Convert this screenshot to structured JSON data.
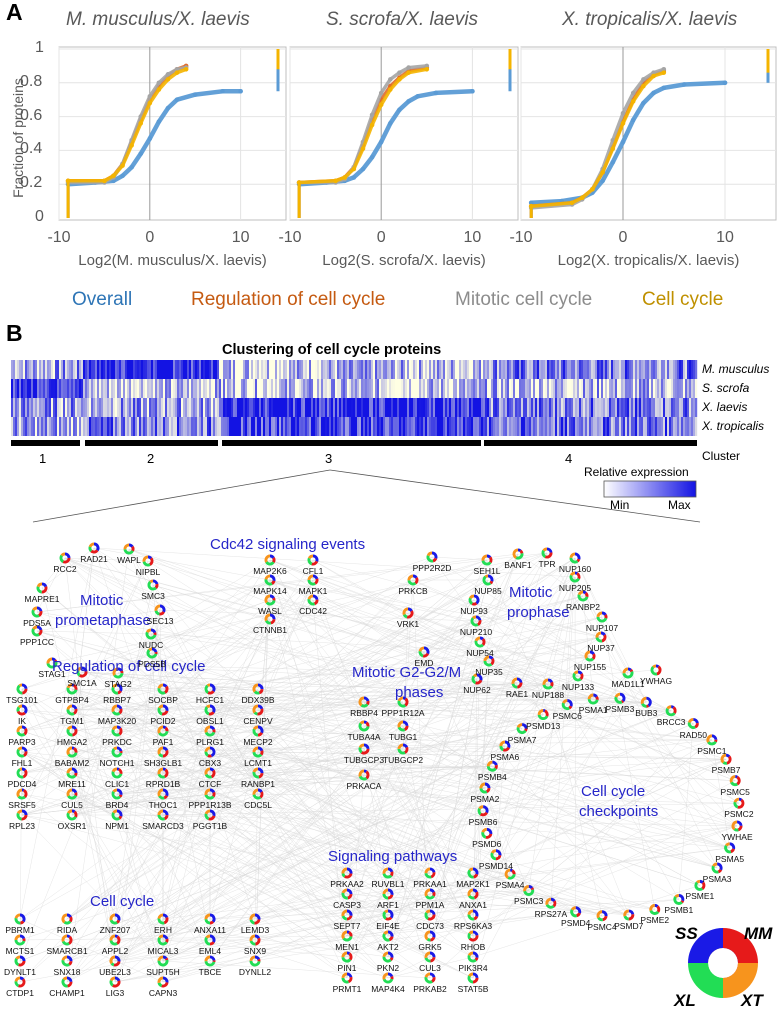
{
  "panel_a": {
    "label": "A",
    "y_axis_label": "Fraction of proteins",
    "y_ticks": [
      "1",
      "0.8",
      "0.6",
      "0.4",
      "0.2",
      "0"
    ],
    "x_ticks": [
      "-10",
      "0",
      "10"
    ],
    "colors": {
      "overall": "#5b9bd5",
      "regulation": "#e06c2c",
      "mitotic": "#a5a5a5",
      "cell_cycle": "#f4b400"
    }
  },
  "panel_b": {
    "label": "B",
    "heatmap_title": "Clustering of cell cycle proteins",
    "row_labels": [
      "M. musculus",
      "S. scrofa",
      "X. laevis",
      "X. tropicalis"
    ],
    "cluster_word": "Cluster",
    "clusters": [
      "1",
      "2",
      "3",
      "4"
    ],
    "relexp_title": "Relative expression",
    "relexp_min": "Min",
    "relexp_max": "Max",
    "min_color": "#ffffff",
    "max_color": "#1313e3"
  },
  "network": {
    "groups": {
      "cdc42": "Cdc42 signaling events",
      "prometa_1": "Mitotic",
      "prometa_2": "prometaphase",
      "prophase_1": "Mitotic",
      "prophase_2": "prophase",
      "regulation": "Regulation of cell cycle",
      "g2m_1": "Mitotic G2-G2/M",
      "g2m_2": "phases",
      "checkpoints_1": "Cell cycle",
      "checkpoints_2": "checkpoints",
      "signaling": "Signaling pathways",
      "cellcycle": "Cell cycle"
    },
    "legend": {
      "ss": "SS",
      "mm": "MM",
      "xl": "XL",
      "xt": "XT"
    },
    "species_colors": {
      "ss": "#1a1ae6",
      "mm": "#e61a1a",
      "xl": "#22dd55",
      "xt": "#f7941d"
    }
  },
  "chart_data": [
    {
      "type": "line",
      "title": "M. musculus/X. laevis",
      "xlabel": "Log2(M. musculus/X. laevis)",
      "ylabel": "Fraction of proteins",
      "xlim": [
        -10,
        15
      ],
      "ylim": [
        0,
        1
      ],
      "series": [
        {
          "name": "Overall",
          "x": [
            -9,
            -6,
            -4,
            -3,
            -2,
            -1,
            0,
            1,
            2,
            3,
            5,
            8,
            10
          ],
          "y": [
            0.2,
            0.21,
            0.22,
            0.25,
            0.3,
            0.38,
            0.47,
            0.57,
            0.65,
            0.7,
            0.73,
            0.75,
            0.75
          ]
        },
        {
          "name": "Regulation of cell cycle",
          "x": [
            -9,
            -5,
            -4,
            -3,
            -2,
            -1,
            0,
            1,
            2,
            3,
            4
          ],
          "y": [
            0.22,
            0.22,
            0.25,
            0.32,
            0.45,
            0.58,
            0.7,
            0.78,
            0.84,
            0.88,
            0.9
          ]
        },
        {
          "name": "Mitotic cell cycle",
          "x": [
            -9,
            -5,
            -4,
            -3,
            -2,
            -1,
            0,
            1,
            2,
            3,
            4
          ],
          "y": [
            0.21,
            0.21,
            0.24,
            0.32,
            0.46,
            0.6,
            0.72,
            0.8,
            0.85,
            0.88,
            0.89
          ]
        },
        {
          "name": "Cell cycle",
          "x": [
            -9,
            -5,
            -4,
            -3,
            -2,
            -1,
            0,
            1,
            2,
            3,
            4
          ],
          "y": [
            0.22,
            0.22,
            0.25,
            0.31,
            0.43,
            0.56,
            0.68,
            0.76,
            0.82,
            0.86,
            0.88
          ]
        }
      ]
    },
    {
      "type": "line",
      "title": "S. scrofa/X. laevis",
      "xlabel": "Log2(S. scrofa/X. laevis)",
      "ylabel": "Fraction of proteins",
      "xlim": [
        -10,
        15
      ],
      "ylim": [
        0,
        1
      ],
      "series": [
        {
          "name": "Overall",
          "x": [
            -9,
            -6,
            -4,
            -3,
            -2,
            -1,
            0,
            1,
            2,
            3,
            4,
            6,
            10
          ],
          "y": [
            0.2,
            0.21,
            0.22,
            0.24,
            0.29,
            0.36,
            0.45,
            0.56,
            0.64,
            0.69,
            0.72,
            0.74,
            0.75
          ]
        },
        {
          "name": "Regulation of cell cycle",
          "x": [
            -9,
            -5,
            -4,
            -3,
            -2,
            -1,
            0,
            1,
            2,
            3,
            5
          ],
          "y": [
            0.21,
            0.22,
            0.24,
            0.3,
            0.43,
            0.58,
            0.7,
            0.78,
            0.83,
            0.87,
            0.89
          ]
        },
        {
          "name": "Mitotic cell cycle",
          "x": [
            -9,
            -5,
            -4,
            -3,
            -2,
            -1,
            0,
            1,
            2,
            3,
            5
          ],
          "y": [
            0.21,
            0.21,
            0.23,
            0.3,
            0.45,
            0.61,
            0.74,
            0.82,
            0.86,
            0.89,
            0.9
          ]
        },
        {
          "name": "Cell cycle",
          "x": [
            -9,
            -5,
            -4,
            -3,
            -2,
            -1,
            0,
            1,
            2,
            3,
            5
          ],
          "y": [
            0.21,
            0.22,
            0.24,
            0.29,
            0.41,
            0.55,
            0.67,
            0.76,
            0.82,
            0.86,
            0.88
          ]
        }
      ]
    },
    {
      "type": "line",
      "title": "X. tropicalis/X. laevis",
      "xlabel": "Log2(X. tropicalis/X. laevis)",
      "ylabel": "Fraction of proteins",
      "xlim": [
        -10,
        15
      ],
      "ylim": [
        0,
        1
      ],
      "series": [
        {
          "name": "Overall",
          "x": [
            -9,
            -6,
            -4,
            -3,
            -2,
            -1,
            0,
            1,
            2,
            3,
            4,
            6,
            10
          ],
          "y": [
            0.09,
            0.1,
            0.12,
            0.15,
            0.22,
            0.33,
            0.45,
            0.58,
            0.68,
            0.74,
            0.77,
            0.79,
            0.8
          ]
        },
        {
          "name": "Regulation of cell cycle",
          "x": [
            -9,
            -5,
            -4,
            -3,
            -2,
            -1,
            0,
            1,
            2,
            3,
            4
          ],
          "y": [
            0.07,
            0.09,
            0.12,
            0.17,
            0.27,
            0.42,
            0.57,
            0.7,
            0.8,
            0.85,
            0.87
          ]
        },
        {
          "name": "Mitotic cell cycle",
          "x": [
            -9,
            -5,
            -4,
            -3,
            -2,
            -1,
            0,
            1,
            2,
            3,
            4
          ],
          "y": [
            0.06,
            0.08,
            0.11,
            0.17,
            0.29,
            0.46,
            0.62,
            0.74,
            0.82,
            0.86,
            0.88
          ]
        },
        {
          "name": "Cell cycle",
          "x": [
            -9,
            -5,
            -4,
            -3,
            -2,
            -1,
            0,
            1,
            2,
            3,
            4
          ],
          "y": [
            0.07,
            0.09,
            0.12,
            0.17,
            0.27,
            0.41,
            0.56,
            0.69,
            0.78,
            0.84,
            0.86
          ]
        }
      ]
    }
  ]
}
